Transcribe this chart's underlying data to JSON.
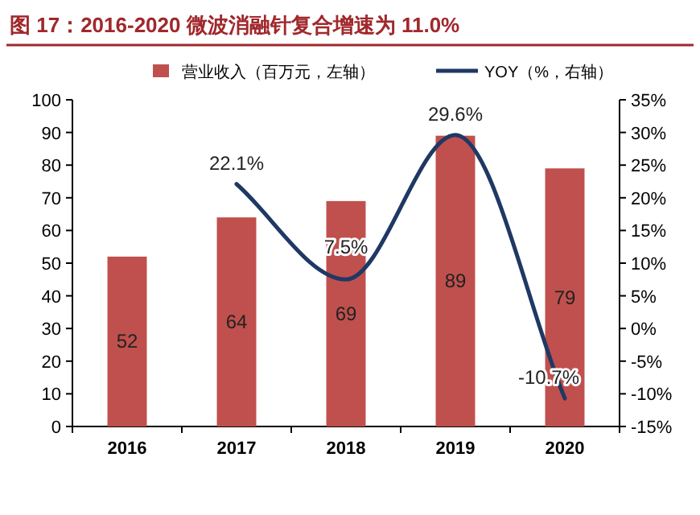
{
  "chart_data": {
    "type": "bar",
    "title": "图 17：2016-2020 微波消融针复合增速为 11.0%",
    "categories": [
      "2016",
      "2017",
      "2018",
      "2019",
      "2020"
    ],
    "series": [
      {
        "name": "营业收入（百万元，左轴）",
        "color": "#c0504d",
        "values": [
          52,
          64,
          69,
          89,
          79
        ],
        "value_labels": [
          "52",
          "64",
          "69",
          "89",
          "79"
        ]
      },
      {
        "name": "YOY（%，右轴）",
        "type": "line",
        "axis": "y2",
        "color": "#1f3864",
        "values": [
          null,
          22.1,
          7.5,
          29.6,
          -10.7
        ],
        "value_labels": [
          null,
          "22.1%",
          "7.5%",
          "29.6%",
          "-10.7%"
        ]
      }
    ],
    "ylim": [
      0,
      100
    ],
    "yticks": [
      0,
      10,
      20,
      30,
      40,
      50,
      60,
      70,
      80,
      90,
      100
    ],
    "y2lim": [
      -15,
      35
    ],
    "y2ticks": [
      {
        "value": -15,
        "label": "-15%"
      },
      {
        "value": -10,
        "label": "-10%"
      },
      {
        "value": -5,
        "label": "-5%"
      },
      {
        "value": 0,
        "label": "0%"
      },
      {
        "value": 5,
        "label": "5%"
      },
      {
        "value": 10,
        "label": "10%"
      },
      {
        "value": 15,
        "label": "15%"
      },
      {
        "value": 20,
        "label": "20%"
      },
      {
        "value": 25,
        "label": "25%"
      },
      {
        "value": 30,
        "label": "30%"
      },
      {
        "value": 35,
        "label": "35%"
      }
    ],
    "legend": "top",
    "grid": false
  }
}
